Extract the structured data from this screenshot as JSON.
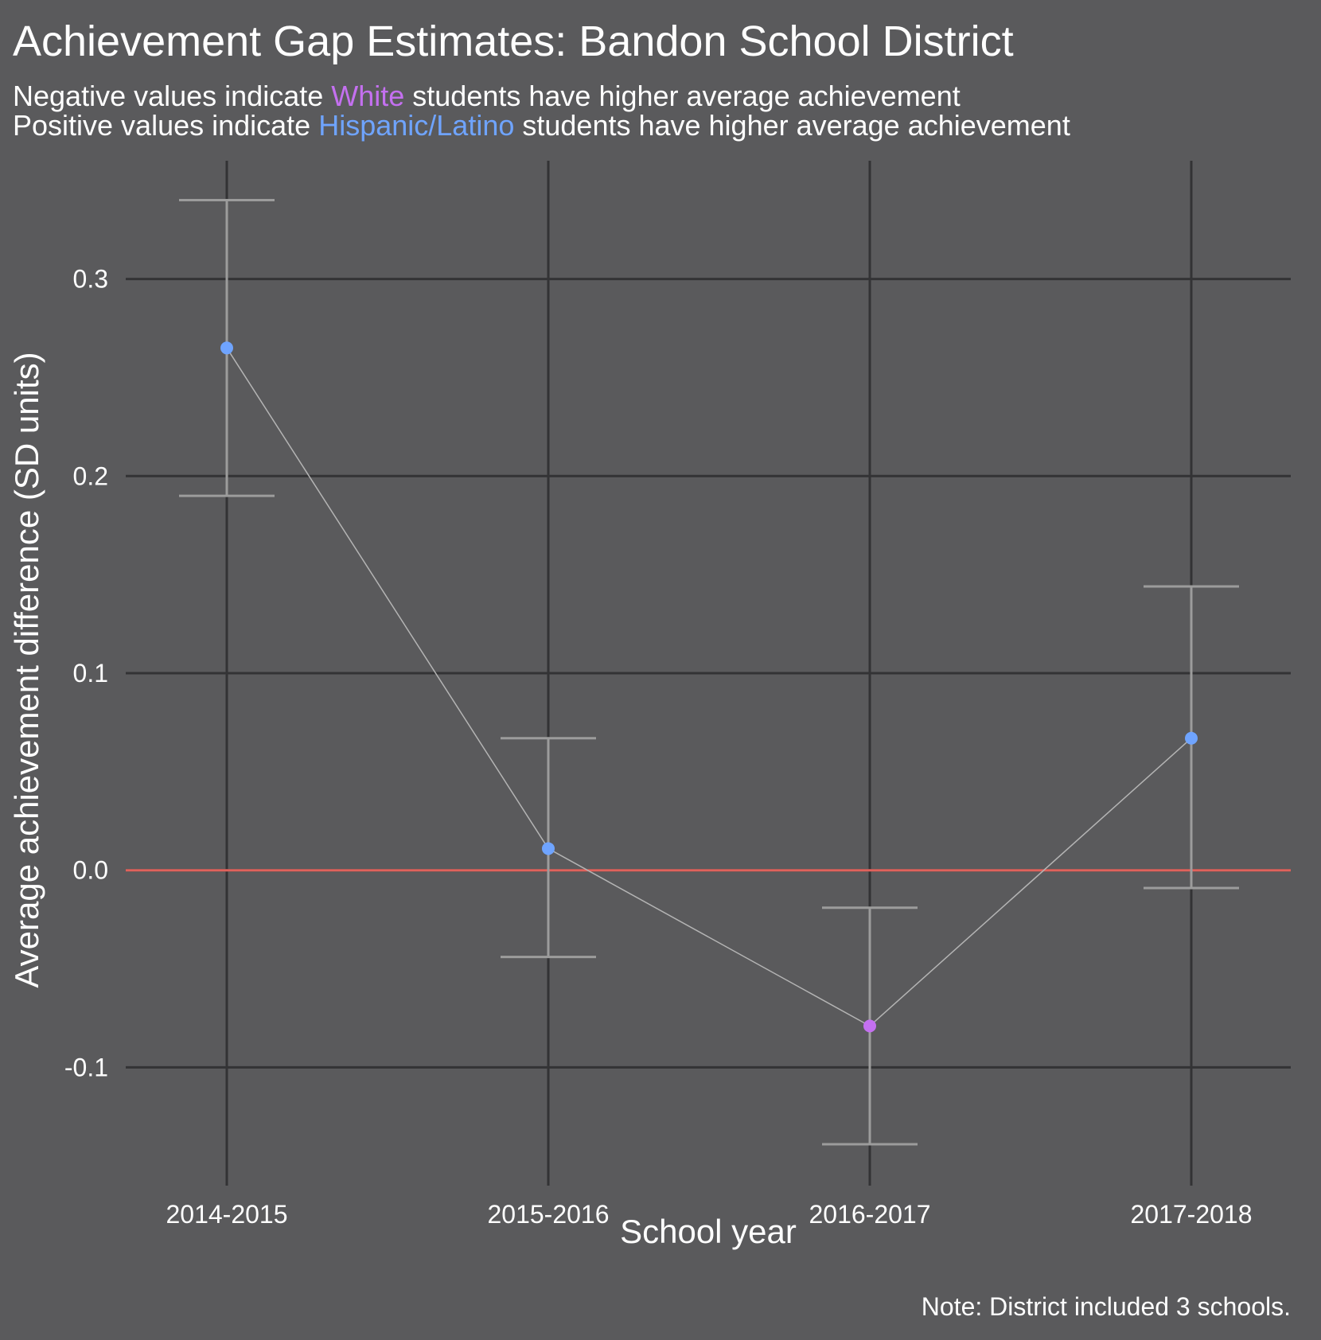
{
  "chart_data": {
    "type": "scatter",
    "title": "Achievement Gap Estimates: Bandon School District",
    "subtitle": {
      "line1": {
        "before": "Negative values indicate ",
        "highlight": "White",
        "after": " students have higher average achievement"
      },
      "line2": {
        "before": "Positive values indicate ",
        "highlight": "Hispanic/Latino",
        "after": " students have higher average achievement"
      }
    },
    "xlabel": "School year",
    "ylabel": "Average achievement difference (SD units)",
    "categories": [
      "2014-2015",
      "2015-2016",
      "2016-2017",
      "2017-2018"
    ],
    "values": [
      0.265,
      0.011,
      -0.079,
      0.067
    ],
    "ci_lower": [
      0.19,
      -0.044,
      -0.139,
      -0.009
    ],
    "ci_upper": [
      0.34,
      0.067,
      -0.019,
      0.144
    ],
    "ylim": [
      -0.16,
      0.36
    ],
    "yticks": [
      -0.1,
      0.0,
      0.1,
      0.2,
      0.3
    ],
    "ytick_labels": [
      "-0.1",
      "0.0",
      "0.1",
      "0.2",
      "0.3"
    ],
    "reference_line_y": 0,
    "grid": true,
    "note": "Note: District included 3 schools.",
    "colors": {
      "background": "#5a5a5c",
      "grid": "#333335",
      "reference_line": "#e0625c",
      "error_bar": "#9c9c9c",
      "connector": "#b4b4b4",
      "positive_point": "#6fa4ff",
      "negative_point": "#c470f0",
      "white_label": "#c470f0",
      "hispanic_label": "#6fa4ff"
    }
  }
}
